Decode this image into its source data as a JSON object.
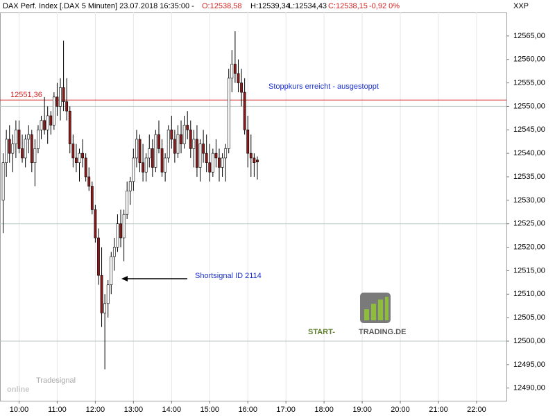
{
  "chart_data": {
    "type": "candlestick",
    "header": {
      "instrument": "DAX Perf. Index [.DAX  5 Minuten] 23.07.2018 16:35:00 -",
      "open": "O:12538,58",
      "high": "H:12539,34",
      "low": "L:12534,43",
      "close": "C:12538,15",
      "change": "-0,92 0%"
    },
    "corner_label": "XXP",
    "up_color": "#ffffff",
    "down_color": "#8b1a1a",
    "xlim": [
      "09:30",
      "22:47"
    ],
    "xticks": [
      "10:00",
      "11:00",
      "12:00",
      "13:00",
      "14:00",
      "15:00",
      "16:00",
      "17:00",
      "18:00",
      "19:00",
      "20:00",
      "21:00",
      "22:00"
    ],
    "ylim": [
      12487.3,
      12570
    ],
    "yticks": [
      {
        "value": 12490,
        "label": "12490,00"
      },
      {
        "value": 12495,
        "label": "12495,00"
      },
      {
        "value": 12500,
        "label": "12500,00"
      },
      {
        "value": 12505,
        "label": "12505,00"
      },
      {
        "value": 12510,
        "label": "12510,00"
      },
      {
        "value": 12515,
        "label": "12515,00"
      },
      {
        "value": 12520,
        "label": "12520,00"
      },
      {
        "value": 12525,
        "label": "12525,00"
      },
      {
        "value": 12530,
        "label": "12530,00"
      },
      {
        "value": 12535,
        "label": "12535,00"
      },
      {
        "value": 12540,
        "label": "12540,00"
      },
      {
        "value": 12545,
        "label": "12545,00"
      },
      {
        "value": 12550,
        "label": "12550,00"
      },
      {
        "value": 12555,
        "label": "12555,00"
      },
      {
        "value": 12560,
        "label": "12560,00"
      },
      {
        "value": 12565,
        "label": "12565,00"
      }
    ],
    "grid_lines": [
      12500,
      12525,
      12550
    ],
    "stop_line": {
      "value": 12551.36,
      "label": "12551,36",
      "color": "#d42020"
    },
    "x": [
      "09:35",
      "09:40",
      "09:45",
      "09:50",
      "09:55",
      "10:00",
      "10:05",
      "10:10",
      "10:15",
      "10:20",
      "10:25",
      "10:30",
      "10:35",
      "10:40",
      "10:45",
      "10:50",
      "10:55",
      "11:00",
      "11:05",
      "11:10",
      "11:15",
      "11:20",
      "11:25",
      "11:30",
      "11:35",
      "11:40",
      "11:45",
      "11:50",
      "11:55",
      "12:00",
      "12:05",
      "12:10",
      "12:15",
      "12:20",
      "12:25",
      "12:30",
      "12:35",
      "12:40",
      "12:45",
      "12:50",
      "12:55",
      "13:00",
      "13:05",
      "13:10",
      "13:15",
      "13:20",
      "13:25",
      "13:30",
      "13:35",
      "13:40",
      "13:45",
      "13:50",
      "13:55",
      "14:00",
      "14:05",
      "14:10",
      "14:15",
      "14:20",
      "14:25",
      "14:30",
      "14:35",
      "14:40",
      "14:45",
      "14:50",
      "14:55",
      "15:00",
      "15:05",
      "15:10",
      "15:15",
      "15:20",
      "15:25",
      "15:30",
      "15:35",
      "15:40",
      "15:45",
      "15:50",
      "15:55",
      "16:00",
      "16:05",
      "16:10",
      "16:15"
    ],
    "open": [
      12530,
      12538,
      12543,
      12540,
      12542,
      12545,
      12541,
      12539,
      12543,
      12544,
      12538,
      12541,
      12545,
      12547,
      12545,
      12548,
      12546,
      12552,
      12550,
      12554,
      12551,
      12549,
      12542,
      12539,
      12538,
      12540,
      12539,
      12535,
      12533,
      12528,
      12522,
      12514,
      12506,
      12508,
      12512,
      12518,
      12520,
      12525,
      12522,
      12527,
      12532,
      12534,
      12539,
      12543,
      12538,
      12536,
      12539,
      12541,
      12537,
      12544,
      12541,
      12536,
      12539,
      12545,
      12543,
      12540,
      12544,
      12542,
      12546,
      12545,
      12541,
      12543,
      12537,
      12542,
      12540,
      12538,
      12536,
      12540,
      12539,
      12537,
      12539,
      12541,
      12556,
      12559,
      12557,
      12555,
      12553,
      12545,
      12540,
      12539,
      12538.58
    ],
    "high": [
      12540,
      12545,
      12546,
      12544,
      12547,
      12547,
      12544,
      12544,
      12546,
      12545,
      12543,
      12546,
      12548,
      12552,
      12550,
      12549,
      12553,
      12555,
      12556,
      12564,
      12556,
      12550,
      12544,
      12542,
      12541,
      12543,
      12540,
      12537,
      12534,
      12529,
      12524,
      12520,
      12510,
      12513,
      12519,
      12522,
      12527,
      12528,
      12528,
      12534,
      12535,
      12541,
      12545,
      12544,
      12542,
      12540,
      12544,
      12543,
      12545,
      12547,
      12543,
      12540,
      12546,
      12548,
      12545,
      12546,
      12547,
      12548,
      12549,
      12547,
      12545,
      12546,
      12543,
      12545,
      12544,
      12542,
      12541,
      12543,
      12541,
      12540,
      12542,
      12558,
      12562,
      12566,
      12560,
      12558,
      12556,
      12548,
      12544,
      12540,
      12539.34
    ],
    "low": [
      12523,
      12535,
      12538,
      12536,
      12539,
      12540,
      12538,
      12537,
      12540,
      12536,
      12533,
      12540,
      12543,
      12544,
      12542,
      12544,
      12545,
      12548,
      12547,
      12549,
      12547,
      12540,
      12537,
      12536,
      12534,
      12537,
      12534,
      12532,
      12527,
      12521,
      12512,
      12503,
      12494,
      12505,
      12510,
      12515,
      12519,
      12520,
      12517,
      12526,
      12529,
      12532,
      12537,
      12536,
      12534,
      12534,
      12537,
      12535,
      12536,
      12540,
      12535,
      12534,
      12538,
      12541,
      12538,
      12539,
      12540,
      12541,
      12543,
      12539,
      12537,
      12535,
      12534,
      12538,
      12536,
      12534,
      12535,
      12537,
      12534,
      12535,
      12534,
      12540,
      12553,
      12555,
      12553,
      12550,
      12544,
      12537,
      12535,
      12535,
      12534.43
    ],
    "close": [
      12538,
      12543,
      12540,
      12542,
      12545,
      12541,
      12539,
      12543,
      12544,
      12538,
      12541,
      12545,
      12547,
      12545,
      12548,
      12546,
      12552,
      12550,
      12554,
      12551,
      12549,
      12542,
      12539,
      12538,
      12540,
      12539,
      12535,
      12533,
      12528,
      12522,
      12514,
      12506,
      12508,
      12512,
      12518,
      12520,
      12525,
      12522,
      12527,
      12532,
      12534,
      12539,
      12543,
      12538,
      12536,
      12539,
      12541,
      12537,
      12544,
      12541,
      12536,
      12539,
      12545,
      12543,
      12540,
      12544,
      12542,
      12546,
      12545,
      12541,
      12543,
      12537,
      12542,
      12540,
      12538,
      12536,
      12540,
      12539,
      12537,
      12539,
      12541,
      12556,
      12559,
      12557,
      12555,
      12553,
      12545,
      12540,
      12539,
      12538,
      12538.15
    ],
    "annotations": [
      {
        "text": "Stoppkurs erreicht - ausgestoppt",
        "color": "#1a2fd0"
      },
      {
        "text": "Shortsignal ID 2114",
        "color": "#1a2fd0"
      }
    ],
    "logo": {
      "part1": "START-",
      "part2": "TRADING.DE"
    },
    "watermark": {
      "small": "Tradesignal",
      "big": "online"
    }
  }
}
